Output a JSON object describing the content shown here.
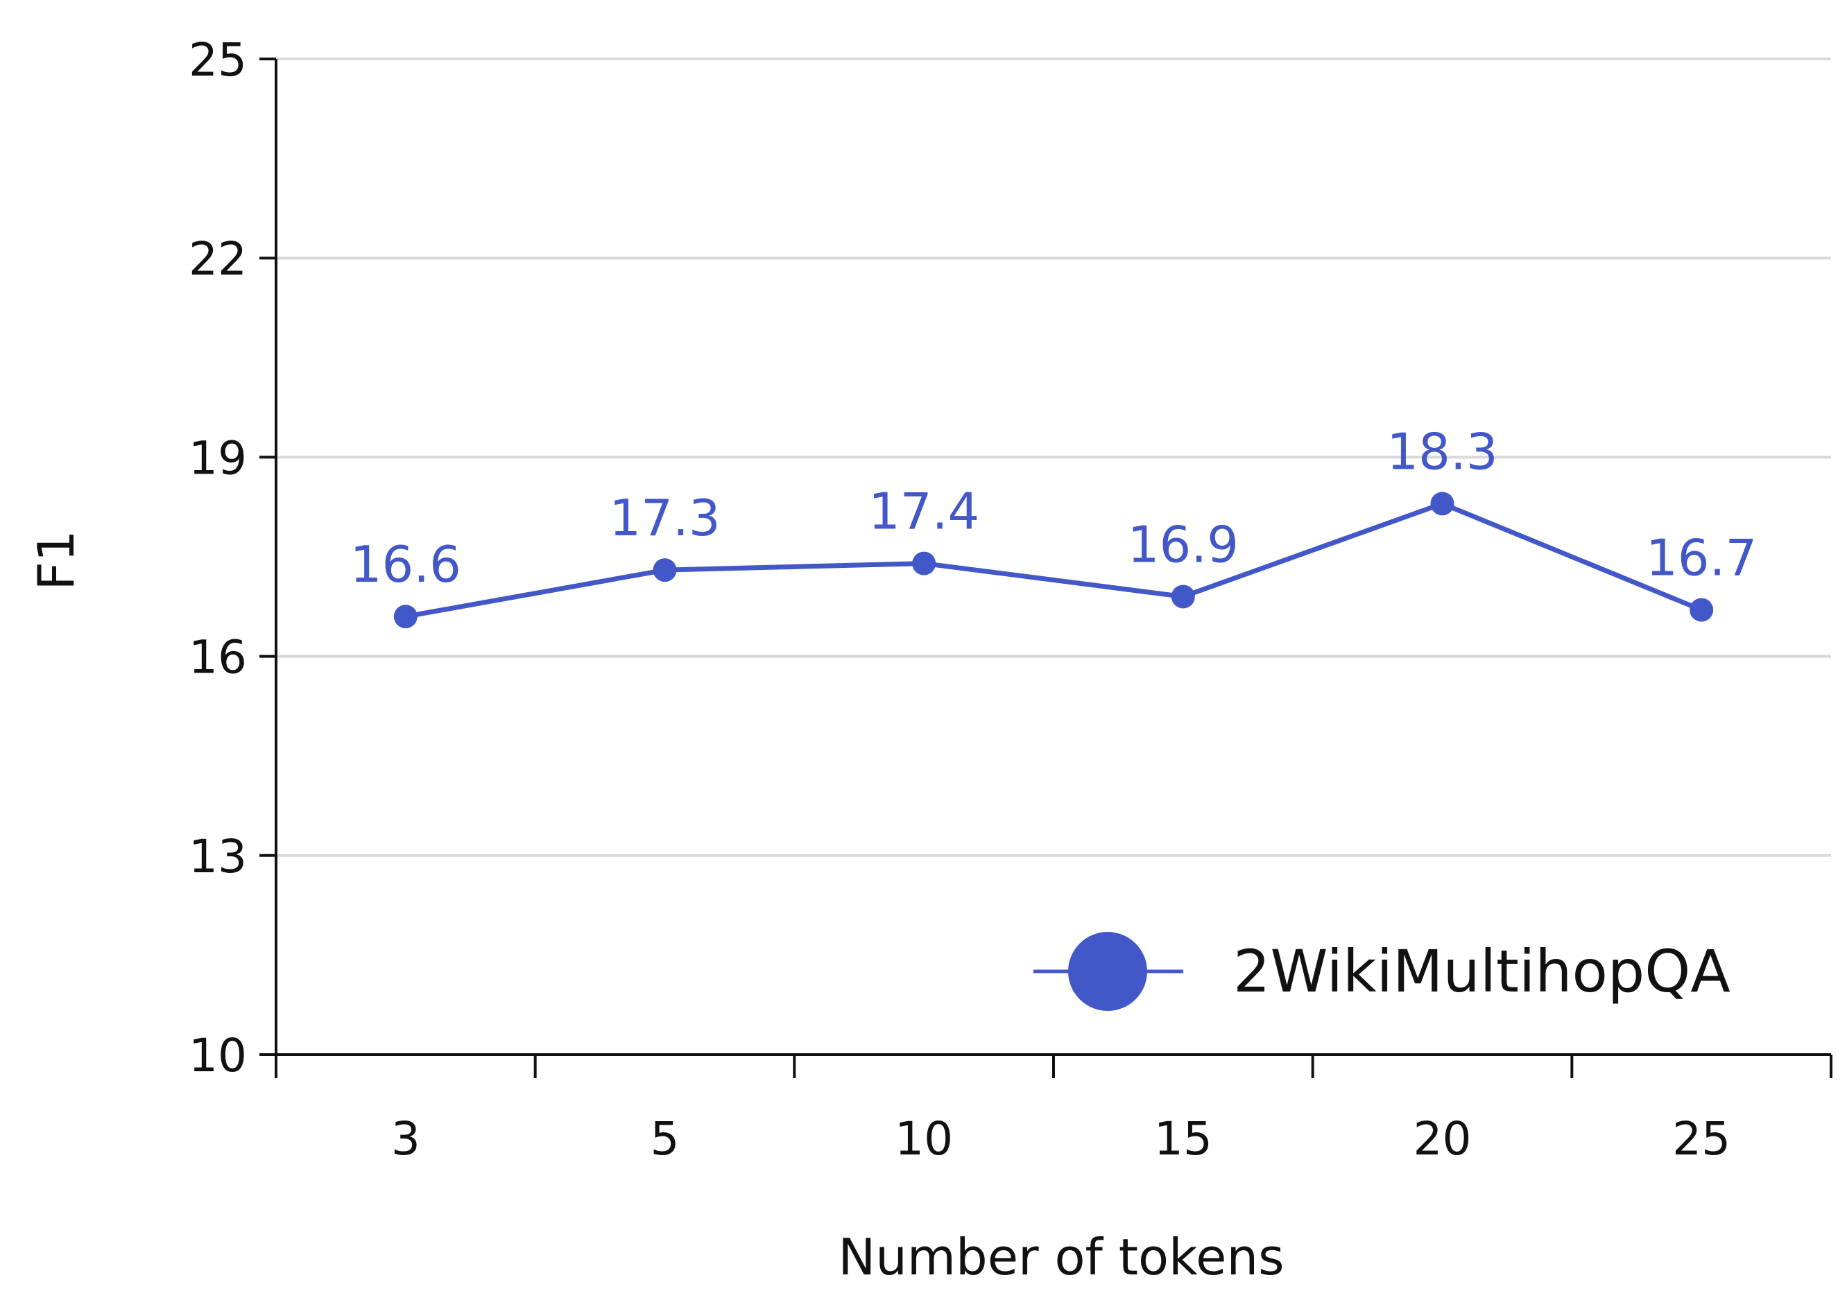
{
  "chart_data": {
    "type": "line",
    "title": "",
    "xlabel": "Number of tokens",
    "ylabel": "F1",
    "categories": [
      "3",
      "5",
      "10",
      "15",
      "20",
      "25"
    ],
    "series": [
      {
        "name": "2WikiMultihopQA",
        "values": [
          16.6,
          17.3,
          17.4,
          16.9,
          18.3,
          16.7
        ],
        "data_labels": [
          "16.6",
          "17.3",
          "17.4",
          "16.9",
          "18.3",
          "16.7"
        ]
      }
    ],
    "ylim": [
      10,
      25
    ],
    "yticks": [
      10,
      13,
      16,
      19,
      22,
      25
    ],
    "ytick_labels": [
      "10",
      "13",
      "16",
      "19",
      "22",
      "25"
    ],
    "grid": "horizontal",
    "legend_position": "bottom-right",
    "colors": {
      "series": "#4257c8",
      "grid": "#d9d9d9",
      "axis": "#111111"
    }
  }
}
